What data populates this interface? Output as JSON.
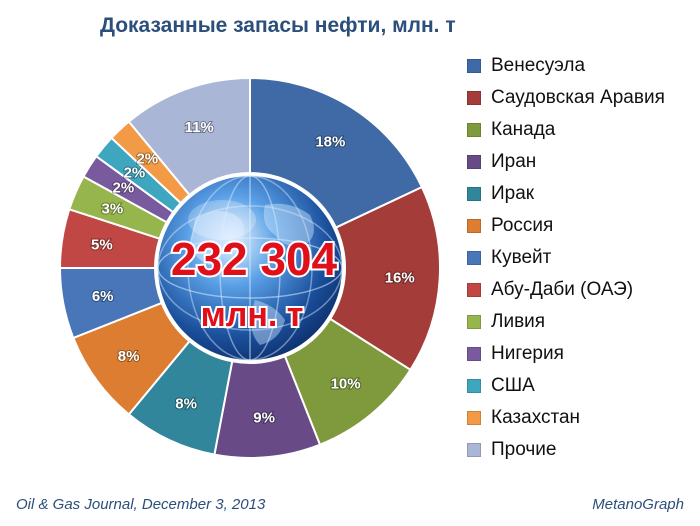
{
  "chart_data": {
    "type": "pie",
    "title": "Доказанные запасы нефти, млн. т",
    "center_value": "232 304",
    "center_unit": "млн. т",
    "categories": [
      "Венесуэла",
      "Саудовская Аравия",
      "Канада",
      "Иран",
      "Ирак",
      "Россия",
      "Кувейт",
      "Абу-Даби (ОАЭ)",
      "Ливия",
      "Нигерия",
      "США",
      "Казахстан",
      "Прочие"
    ],
    "values": [
      18,
      16,
      10,
      9,
      8,
      8,
      6,
      5,
      3,
      2,
      2,
      2,
      11
    ],
    "labels": [
      "18%",
      "16%",
      "10%",
      "9%",
      "8%",
      "8%",
      "6%",
      "5%",
      "3%",
      "2%",
      "2%",
      "2%",
      "11%"
    ],
    "colors": [
      "#3f6aa6",
      "#a43c3a",
      "#7f9a3d",
      "#674a86",
      "#32869b",
      "#dc7d31",
      "#4876b8",
      "#c04744",
      "#97b54d",
      "#7a5a9e",
      "#3fa6c0",
      "#f29a45",
      "#aab6d6"
    ],
    "legend": "right"
  },
  "footer": {
    "source": "Oil & Gas Journal, December 3, 2013",
    "brand": "MetanoGraph"
  }
}
